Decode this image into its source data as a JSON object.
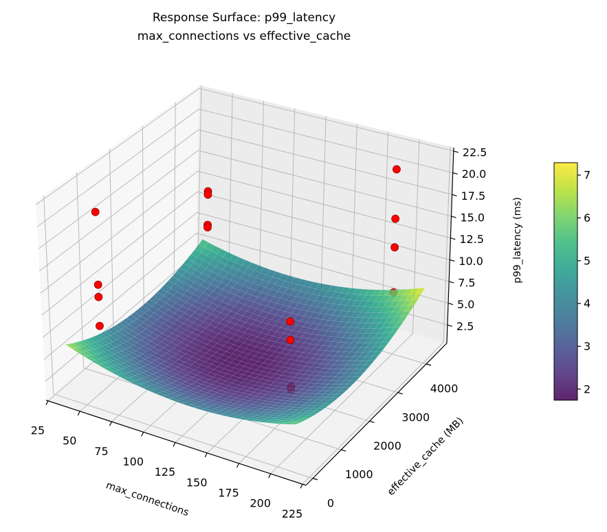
{
  "chart_data": {
    "type": "surface",
    "title": [
      "Response Surface: p99_latency",
      "max_connections vs effective_cache"
    ],
    "xlabel": "max_connections",
    "ylabel": "effective_cache (MB)",
    "zlabel": "p99_latency (ms)",
    "xlim": [
      23.4,
      227.7
    ],
    "ylim": [
      -243,
      4726
    ],
    "zlim": [
      0.4,
      22.9
    ],
    "x_ticks": [
      "25",
      "50",
      "75",
      "100",
      "125",
      "150",
      "175",
      "200",
      "225"
    ],
    "y_ticks": [
      "0",
      "1000",
      "2000",
      "3000",
      "4000"
    ],
    "z_ticks": [
      "2.5",
      "5.0",
      "7.5",
      "10.0",
      "12.5",
      "15.0",
      "17.5",
      "20.0",
      "22.5"
    ],
    "grid": true,
    "surface": {
      "colormap": "viridis",
      "x_range": [
        35,
        215
      ],
      "y_range": [
        0,
        4450
      ],
      "quadratic_fit": {
        "intercept": 8.665,
        "x": -0.07,
        "y": -0.002423,
        "x2": 0.0002659,
        "y2": 4.741e-07,
        "xy": 2.807e-06
      }
    },
    "points": {
      "color": "#ff0000",
      "data": [
        {
          "x": 50,
          "y": 500,
          "z": 20.9
        },
        {
          "x": 50,
          "y": 500,
          "z": 12.6
        },
        {
          "x": 50,
          "y": 500,
          "z": 11.2
        },
        {
          "x": 50,
          "y": 500,
          "z": 7.9
        },
        {
          "x": 50,
          "y": 4000,
          "z": 13.3
        },
        {
          "x": 50,
          "y": 4000,
          "z": 12.9
        },
        {
          "x": 50,
          "y": 4000,
          "z": 9.3
        },
        {
          "x": 50,
          "y": 4000,
          "z": 9.0
        },
        {
          "x": 200,
          "y": 500,
          "z": 15.3
        },
        {
          "x": 200,
          "y": 500,
          "z": 13.2
        },
        {
          "x": 200,
          "y": 500,
          "z": 7.9
        },
        {
          "x": 200,
          "y": 500,
          "z": 7.6
        },
        {
          "x": 200,
          "y": 4000,
          "z": 21.7
        },
        {
          "x": 200,
          "y": 4000,
          "z": 16.0
        },
        {
          "x": 200,
          "y": 4000,
          "z": 12.7
        },
        {
          "x": 200,
          "y": 4000,
          "z": 7.5
        }
      ]
    },
    "colorbar": {
      "range": [
        1.74,
        7.29
      ],
      "ticks": [
        "2",
        "3",
        "4",
        "5",
        "6",
        "7"
      ],
      "position": "right"
    }
  }
}
